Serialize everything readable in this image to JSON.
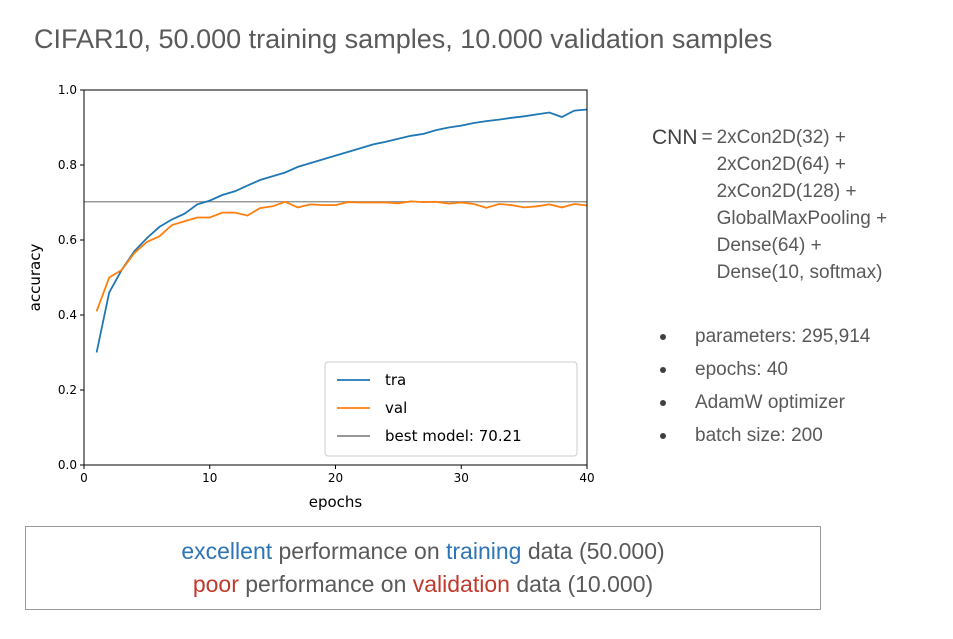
{
  "title": "CIFAR10, 50.000 training samples, 10.000 validation samples",
  "chart_data": {
    "type": "line",
    "xlabel": "epochs",
    "ylabel": "accuracy",
    "xlim": [
      0,
      40
    ],
    "ylim": [
      0.0,
      1.0
    ],
    "xticks": [
      "0",
      "10",
      "20",
      "30",
      "40"
    ],
    "yticks": [
      "0.0",
      "0.2",
      "0.4",
      "0.6",
      "0.8",
      "1.0"
    ],
    "legend_position": "lower-right",
    "x": [
      1,
      2,
      3,
      4,
      5,
      6,
      7,
      8,
      9,
      10,
      11,
      12,
      13,
      14,
      15,
      16,
      17,
      18,
      19,
      20,
      21,
      22,
      23,
      24,
      25,
      26,
      27,
      28,
      29,
      30,
      31,
      32,
      33,
      34,
      35,
      36,
      37,
      38,
      39,
      40
    ],
    "series": [
      {
        "name": "tra",
        "color": "#1f77b4",
        "values": [
          0.3,
          0.46,
          0.52,
          0.57,
          0.605,
          0.635,
          0.655,
          0.67,
          0.695,
          0.705,
          0.72,
          0.73,
          0.745,
          0.76,
          0.77,
          0.78,
          0.795,
          0.805,
          0.815,
          0.825,
          0.835,
          0.845,
          0.855,
          0.862,
          0.87,
          0.878,
          0.883,
          0.893,
          0.9,
          0.905,
          0.912,
          0.917,
          0.921,
          0.926,
          0.93,
          0.935,
          0.94,
          0.928,
          0.945,
          0.948
        ]
      },
      {
        "name": "val",
        "color": "#ff7f0e",
        "values": [
          0.41,
          0.5,
          0.52,
          0.565,
          0.595,
          0.61,
          0.64,
          0.65,
          0.66,
          0.66,
          0.673,
          0.673,
          0.665,
          0.685,
          0.69,
          0.702,
          0.687,
          0.695,
          0.693,
          0.693,
          0.701,
          0.7,
          0.7,
          0.7,
          0.698,
          0.703,
          0.701,
          0.702,
          0.697,
          0.7,
          0.696,
          0.686,
          0.696,
          0.693,
          0.687,
          0.69,
          0.695,
          0.687,
          0.696,
          0.692
        ]
      }
    ],
    "reference_line": {
      "name": "best model: 70.21",
      "value": 0.7021,
      "color": "#888888"
    }
  },
  "cnn": {
    "name": "CNN",
    "equals": "=",
    "layers": [
      "2xCon2D(32) +",
      "2xCon2D(64) +",
      "2xCon2D(128) +",
      "GlobalMaxPooling +",
      "Dense(64) +",
      "Dense(10, softmax)"
    ]
  },
  "bullets": [
    "parameters: 295,914",
    "epochs: 40",
    "AdamW optimizer",
    "batch size: 200"
  ],
  "summary": {
    "line1": {
      "w1": "excellent",
      "w2": " performance on ",
      "w3": "training",
      "w4": " data (50.000)"
    },
    "line2": {
      "w1": "poor",
      "w2": " performance on ",
      "w3": "validation",
      "w4": " data (10.000)"
    }
  }
}
